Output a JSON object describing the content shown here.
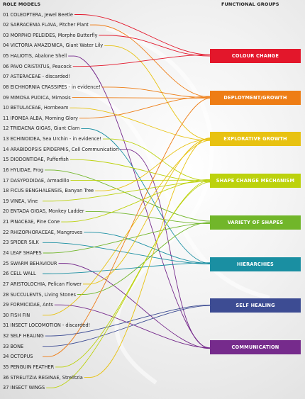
{
  "header": {
    "left": "ROLE MODELS",
    "right": "FUNCTIONAL GROUPS"
  },
  "role_models": [
    {
      "label": "01 COLEOPTERA, Jewel Beetle",
      "group": 0
    },
    {
      "label": "02 SARRACENIA FLAVA, Pitcher Plant",
      "group": 1
    },
    {
      "label": "03 MORPHO PELEIDES, Morpho Butterfly",
      "group": 0
    },
    {
      "label": "04 VICTORIA AMAZONICA, Giant Water Lily",
      "group": 2
    },
    {
      "label": "05 HALIOTIS, Abalone Shell",
      "group": 7
    },
    {
      "label": "06 PAVO CRISTATUS, Peacock",
      "group": 0
    },
    {
      "label": "07 ASTERACEAE - discarded!",
      "group": null
    },
    {
      "label": "08 EICHHORNIA CRASSIPES - in evidence!",
      "group": 1
    },
    {
      "label": "09 MIMOSA PUDICA, Mimosis",
      "group": 1
    },
    {
      "label": "10 BETULACEAE, Hornbeam",
      "group": 2
    },
    {
      "label": "11 IPOMEA ALBA, Morning Glory",
      "group": 1
    },
    {
      "label": "12 TRIDACNA GIGAS, Giant Clam",
      "group": 5
    },
    {
      "label": "13 ECHINOIDEA, Sea Urchin - in evidence!",
      "group": 3
    },
    {
      "label": "14 ARABIDOPSIS EPIDERMIS, Cell Communication",
      "group": 7
    },
    {
      "label": "15 DIODONTIDAE, Pufferfish",
      "group": 3
    },
    {
      "label": "16 HYLIDAE, Frog",
      "group": 4
    },
    {
      "label": "17 DASYPODIDAE, Armadillo",
      "group": 3
    },
    {
      "label": "18 FICUS BENGHALENSIS, Banyan Tree",
      "group": 2
    },
    {
      "label": "19 VINEA, Vine",
      "group": 3
    },
    {
      "label": "20 ENTADA GIGAS, Monkey Ladder",
      "group": 4
    },
    {
      "label": "21 PINACEAE, Pine Cone",
      "group": 3
    },
    {
      "label": "22 RHIZOPHORACEAE, Mangroves",
      "group": 5
    },
    {
      "label": "23 SPIDER SILK",
      "group": 5
    },
    {
      "label": "24 LEAF SHAPES",
      "group": 4
    },
    {
      "label": "25 SWARM BEHAVIOUR",
      "group": 7
    },
    {
      "label": "26 CELL WALL",
      "group": 5
    },
    {
      "label": "27 ARISTOLOCHIA, Pelican Flower",
      "group": 2
    },
    {
      "label": "28 SUCCULENTS, Living Stones",
      "group": 4
    },
    {
      "label": "29 FORMICIDAE, Ants",
      "group": 7
    },
    {
      "label": "30 FISH FIN",
      "group": 2
    },
    {
      "label": "31 INSECT LOCOMOTION - discarded!",
      "group": null
    },
    {
      "label": "32 SELF HEALING",
      "group": 6
    },
    {
      "label": "33 BONE",
      "group": 6
    },
    {
      "label": "34 OCTOPUS",
      "group": 1
    },
    {
      "label": "35 PENGUIN FEATHER",
      "group": 3
    },
    {
      "label": "36 STRELITZIA REGINAE, Strelitzia",
      "group": 2
    },
    {
      "label": "37 INSECT WINGS",
      "group": 3
    }
  ],
  "functional_groups": [
    {
      "label": "COLOUR CHANGE",
      "color": "#e3172b"
    },
    {
      "label": "DEPLOYMENT/GROWTH",
      "color": "#ee7d15"
    },
    {
      "label": "EXPLORATIVE GROWTH",
      "color": "#e8c211"
    },
    {
      "label": "SHAPE CHANGE MECHANISM",
      "color": "#bcd20d"
    },
    {
      "label": "VARIETY OF SHAPES",
      "color": "#71b62a"
    },
    {
      "label": "HIERARCHIES",
      "color": "#1a8fa2"
    },
    {
      "label": "SELF HEALING",
      "color": "#3d4c93"
    },
    {
      "label": "COMMUNICATION",
      "color": "#762b8c"
    }
  ]
}
